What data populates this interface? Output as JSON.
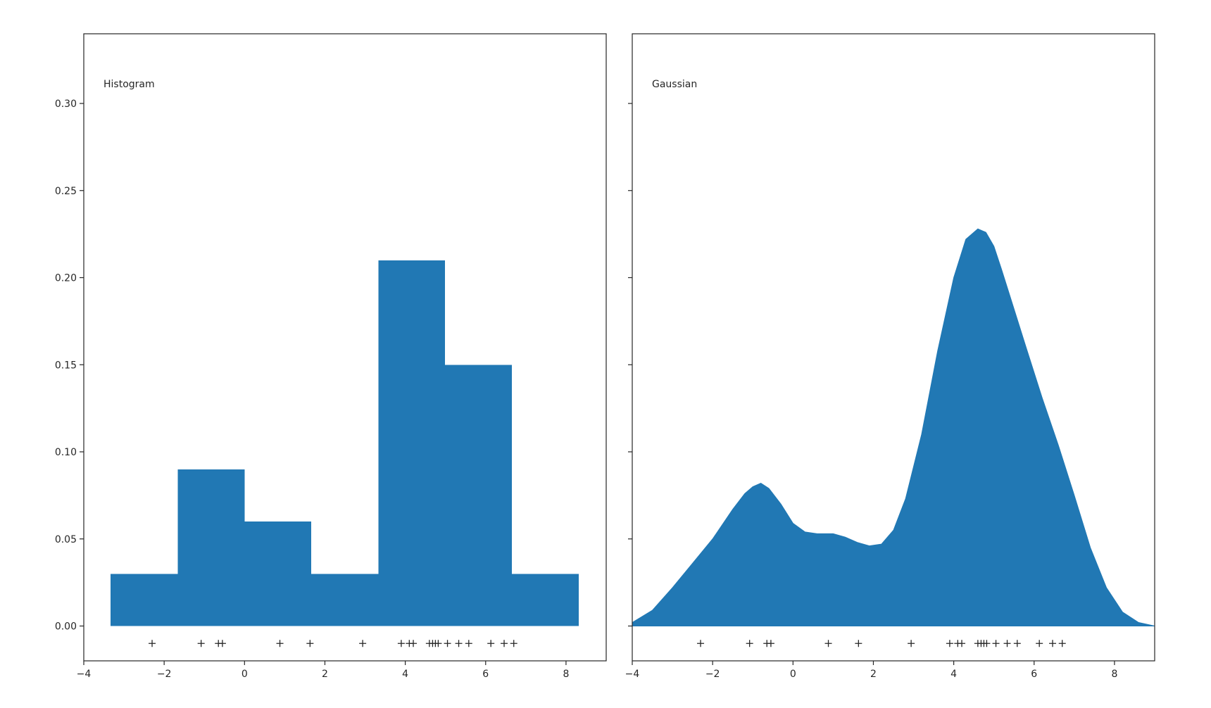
{
  "chart_data": [
    {
      "type": "bar",
      "panel_label": "Histogram",
      "xlim": [
        -4,
        9
      ],
      "ylim": [
        -0.02,
        0.34
      ],
      "x_ticks": [
        -4,
        -2,
        0,
        2,
        4,
        6,
        8
      ],
      "x_tick_labels": [
        "−4",
        "−2",
        "0",
        "2",
        "4",
        "6",
        "8"
      ],
      "y_ticks": [
        0.0,
        0.05,
        0.1,
        0.15,
        0.2,
        0.25,
        0.3
      ],
      "y_tick_labels": [
        "0.00",
        "0.05",
        "0.10",
        "0.15",
        "0.20",
        "0.25",
        "0.30"
      ],
      "bin_edges": [
        -3.33,
        -1.66,
        0.0,
        1.66,
        3.33,
        4.99,
        6.65,
        8.32
      ],
      "values": [
        0.03,
        0.09,
        0.06,
        0.03,
        0.21,
        0.15,
        0.03
      ],
      "color": "#2178b4",
      "samples": [
        -2.3,
        -1.08,
        -0.65,
        -0.55,
        0.88,
        1.63,
        2.94,
        3.9,
        4.1,
        4.2,
        4.6,
        4.68,
        4.75,
        4.82,
        5.05,
        5.33,
        5.58,
        6.13,
        6.46,
        6.7
      ],
      "sample_y": -0.01,
      "title": "",
      "xlabel": "",
      "ylabel": "",
      "grid": false
    },
    {
      "type": "area",
      "panel_label": "Gaussian",
      "xlim": [
        -4,
        9
      ],
      "ylim": [
        -0.02,
        0.34
      ],
      "x_ticks": [
        -4,
        -2,
        0,
        2,
        4,
        6,
        8
      ],
      "x_tick_labels": [
        "−4",
        "−2",
        "0",
        "2",
        "4",
        "6",
        "8"
      ],
      "y_ticks": [
        0.0,
        0.05,
        0.1,
        0.15,
        0.2,
        0.25,
        0.3
      ],
      "share_y": true,
      "x": [
        -4.0,
        -3.5,
        -3.0,
        -2.5,
        -2.0,
        -1.5,
        -1.2,
        -1.0,
        -0.8,
        -0.6,
        -0.3,
        0.0,
        0.3,
        0.6,
        1.0,
        1.3,
        1.6,
        1.9,
        2.2,
        2.5,
        2.8,
        3.2,
        3.6,
        4.0,
        4.3,
        4.6,
        4.8,
        5.0,
        5.2,
        5.5,
        5.8,
        6.2,
        6.6,
        7.0,
        7.4,
        7.8,
        8.2,
        8.6,
        9.0
      ],
      "values": [
        0.002,
        0.009,
        0.022,
        0.036,
        0.05,
        0.067,
        0.076,
        0.08,
        0.082,
        0.079,
        0.07,
        0.059,
        0.054,
        0.053,
        0.053,
        0.051,
        0.048,
        0.046,
        0.047,
        0.055,
        0.073,
        0.11,
        0.158,
        0.2,
        0.222,
        0.228,
        0.226,
        0.218,
        0.204,
        0.182,
        0.16,
        0.131,
        0.104,
        0.075,
        0.045,
        0.022,
        0.008,
        0.002,
        0.0
      ],
      "color": "#2178b4",
      "samples": [
        -2.3,
        -1.08,
        -0.65,
        -0.55,
        0.88,
        1.63,
        2.94,
        3.9,
        4.1,
        4.2,
        4.6,
        4.68,
        4.75,
        4.82,
        5.05,
        5.33,
        5.58,
        6.13,
        6.46,
        6.7
      ],
      "sample_y": -0.01,
      "title": "",
      "xlabel": "",
      "ylabel": "",
      "grid": false
    }
  ]
}
